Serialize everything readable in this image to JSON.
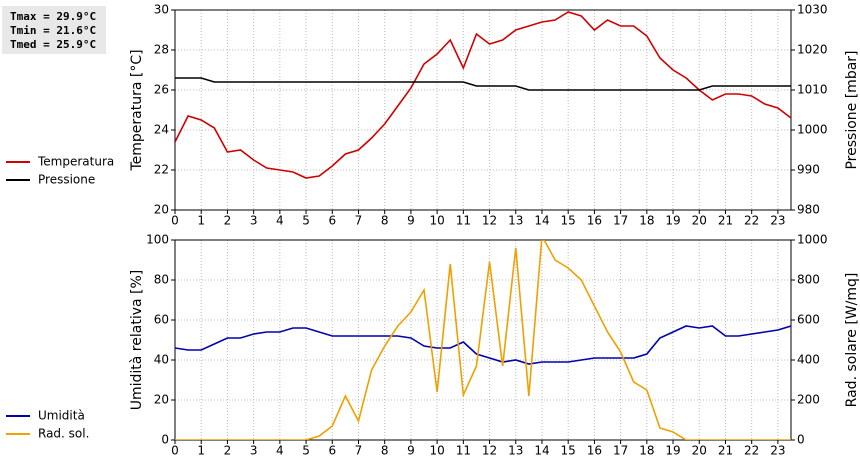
{
  "chart_data": [
    {
      "type": "line",
      "ylabel": "Temperatura [°C]",
      "y2label": "Pressione [mbar]",
      "annotations": [
        "Tmax = 29.9°C",
        "Tmin = 21.6°C",
        "Tmed = 25.9°C"
      ],
      "x": [
        0,
        0.5,
        1,
        1.5,
        2,
        2.5,
        3,
        3.5,
        4,
        4.5,
        5,
        5.5,
        6,
        6.5,
        7,
        7.5,
        8,
        8.5,
        9,
        9.5,
        10,
        10.5,
        11,
        11.5,
        12,
        12.5,
        13,
        13.5,
        14,
        14.5,
        15,
        15.5,
        16,
        16.5,
        17,
        17.5,
        18,
        18.5,
        19,
        19.5,
        20,
        20.5,
        21,
        21.5,
        22,
        22.5,
        23,
        23.5
      ],
      "xlim": [
        0,
        23.5
      ],
      "xticks": [
        0,
        1,
        2,
        3,
        4,
        5,
        6,
        7,
        8,
        9,
        10,
        11,
        12,
        13,
        14,
        15,
        16,
        17,
        18,
        19,
        20,
        21,
        22,
        23
      ],
      "ylim": [
        20,
        30
      ],
      "yticks": [
        20,
        22,
        24,
        26,
        28,
        30
      ],
      "y2lim": [
        980,
        1030
      ],
      "y2ticks": [
        980,
        990,
        1000,
        1010,
        1020,
        1030
      ],
      "grid": true,
      "series": [
        {
          "name": "Temperatura",
          "color": "#d00000",
          "values": [
            23.4,
            24.7,
            24.5,
            24.1,
            22.9,
            23.0,
            22.5,
            22.1,
            22.0,
            21.9,
            21.6,
            21.7,
            22.2,
            22.8,
            23.0,
            23.6,
            24.3,
            25.2,
            26.1,
            27.3,
            27.8,
            28.5,
            27.1,
            28.8,
            28.3,
            28.5,
            29.0,
            29.2,
            29.4,
            29.5,
            29.9,
            29.7,
            29.0,
            29.5,
            29.2,
            29.2,
            28.7,
            27.6,
            27.0,
            26.6,
            26.0,
            25.5,
            25.8,
            25.8,
            25.7,
            25.3,
            25.1,
            24.6
          ]
        },
        {
          "name": "Pressione",
          "color": "#000000",
          "axis": "y2",
          "values": [
            1013,
            1013,
            1013,
            1012,
            1012,
            1012,
            1012,
            1012,
            1012,
            1012,
            1012,
            1012,
            1012,
            1012,
            1012,
            1012,
            1012,
            1012,
            1012,
            1012,
            1012,
            1012,
            1012,
            1011,
            1011,
            1011,
            1011,
            1010,
            1010,
            1010,
            1010,
            1010,
            1010,
            1010,
            1010,
            1010,
            1010,
            1010,
            1010,
            1010,
            1010,
            1011,
            1011,
            1011,
            1011,
            1011,
            1011,
            1011
          ]
        }
      ]
    },
    {
      "type": "line",
      "ylabel": "Umidità relativa [%]",
      "y2label": "Rad. solare [W/mq]",
      "x": [
        0,
        0.5,
        1,
        1.5,
        2,
        2.5,
        3,
        3.5,
        4,
        4.5,
        5,
        5.5,
        6,
        6.5,
        7,
        7.5,
        8,
        8.5,
        9,
        9.5,
        10,
        10.5,
        11,
        11.5,
        12,
        12.5,
        13,
        13.5,
        14,
        14.5,
        15,
        15.5,
        16,
        16.5,
        17,
        17.5,
        18,
        18.5,
        19,
        19.5,
        20,
        20.5,
        21,
        21.5,
        22,
        22.5,
        23,
        23.5
      ],
      "xlim": [
        0,
        23.5
      ],
      "xticks": [
        0,
        1,
        2,
        3,
        4,
        5,
        6,
        7,
        8,
        9,
        10,
        11,
        12,
        13,
        14,
        15,
        16,
        17,
        18,
        19,
        20,
        21,
        22,
        23
      ],
      "ylim": [
        0,
        100
      ],
      "yticks": [
        0,
        20,
        40,
        60,
        80,
        100
      ],
      "y2lim": [
        0,
        1000
      ],
      "y2ticks": [
        0,
        200,
        400,
        600,
        800,
        1000
      ],
      "grid": true,
      "series": [
        {
          "name": "Umidità",
          "color": "#0000b0",
          "values": [
            46,
            45,
            45,
            48,
            51,
            51,
            53,
            54,
            54,
            56,
            56,
            54,
            52,
            52,
            52,
            52,
            52,
            52,
            51,
            47,
            46,
            46,
            49,
            43,
            41,
            39,
            40,
            38,
            39,
            39,
            39,
            40,
            41,
            41,
            41,
            41,
            43,
            51,
            54,
            57,
            56,
            57,
            52,
            52,
            53,
            54,
            55,
            57
          ]
        },
        {
          "name": "Rad. sol.",
          "color": "#f0a000",
          "axis": "y2",
          "values": [
            0,
            0,
            0,
            0,
            0,
            0,
            0,
            0,
            0,
            0,
            0,
            20,
            70,
            220,
            95,
            350,
            470,
            570,
            640,
            750,
            240,
            880,
            225,
            370,
            890,
            370,
            960,
            220,
            1020,
            900,
            860,
            800,
            670,
            540,
            440,
            290,
            250,
            60,
            40,
            0,
            0,
            0,
            0,
            0,
            0,
            0,
            0,
            0
          ]
        }
      ]
    }
  ]
}
